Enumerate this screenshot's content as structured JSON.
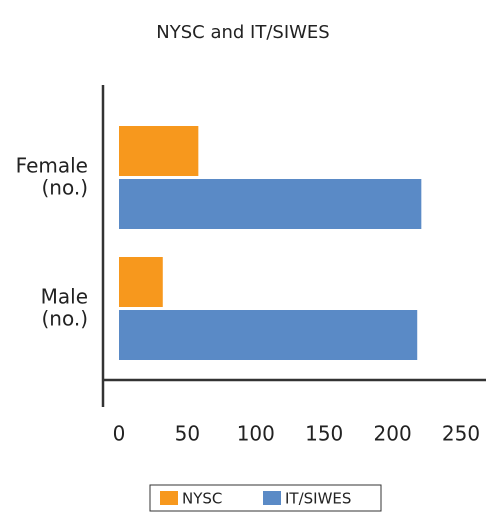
{
  "chart_data": {
    "type": "bar",
    "orientation": "horizontal",
    "title": "NYSC and IT/SIWES",
    "categories": [
      "Female (no.)",
      "Male (no.)"
    ],
    "series": [
      {
        "name": "NYSC",
        "color": "#f7981d",
        "values": [
          58,
          32
        ]
      },
      {
        "name": "IT/SIWES",
        "color": "#5a8ac6",
        "values": [
          221,
          218
        ]
      }
    ],
    "xlim": [
      0,
      250
    ],
    "xticks": [
      0,
      50,
      100,
      150,
      200,
      250
    ],
    "legend": "bottom"
  }
}
